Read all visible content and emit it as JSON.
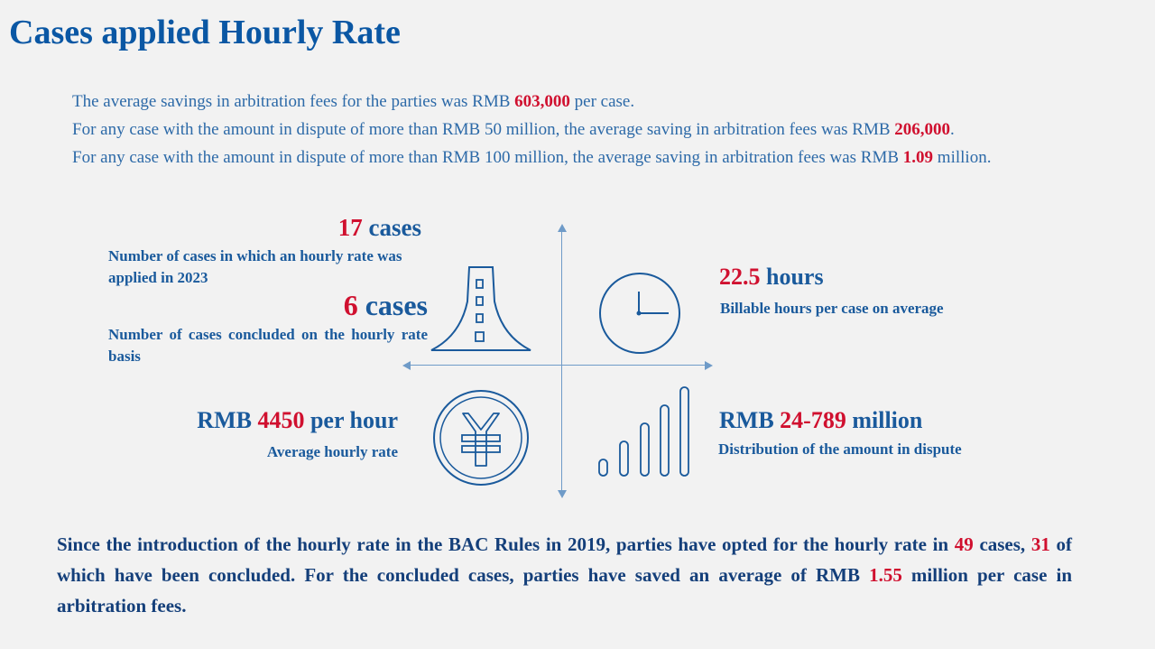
{
  "title": "Cases applied Hourly Rate",
  "intro": {
    "line1_pre": "The average savings in arbitration fees for the parties was RMB ",
    "line1_val": "603,000",
    "line1_post": " per case.",
    "line2_pre": "For any case with the amount in dispute of more than RMB 50 million, the average saving in arbitration fees was RMB ",
    "line2_val": "206,000",
    "line2_post": ".",
    "line3_pre": "For any case with the amount in dispute of more than RMB 100 million, the average saving in arbitration fees was RMB ",
    "line3_val": "1.09",
    "line3_post": " million."
  },
  "stats": {
    "cases_applied": {
      "value": "17",
      "unit": " cases",
      "label": "Number of cases in which an hourly rate was applied in 2023"
    },
    "cases_concluded": {
      "value": "6",
      "unit": " cases",
      "label": "Number of  cases concluded on the hourly rate basis"
    },
    "hours": {
      "value": "22.5",
      "unit": " hours",
      "label": "Billable hours per case on average"
    },
    "rate": {
      "prefix": "RMB ",
      "value": "4450",
      "unit": " per hour",
      "label": "Average hourly rate"
    },
    "dispute": {
      "prefix": "RMB ",
      "value": "24-789",
      "unit": " million",
      "label": "Distribution of the amount in dispute"
    }
  },
  "icons": {
    "road": "road-icon",
    "clock": "clock-icon",
    "yuan": "yuan-icon",
    "bars": "signal-bars-icon"
  },
  "colors": {
    "blue": "#1a5a9c",
    "red": "#d0102f",
    "title_blue": "#0a57a4"
  },
  "summary": {
    "part1": "Since the introduction of the hourly rate in the BAC Rules in 2019, parties have opted for the hourly rate in ",
    "val1": "49",
    "part2": " cases, ",
    "val2": "31",
    "part3": " of which have been concluded. For the concluded cases, parties have saved an average of RMB ",
    "val3": "1.55",
    "part4": " million per case in arbitration fees."
  }
}
